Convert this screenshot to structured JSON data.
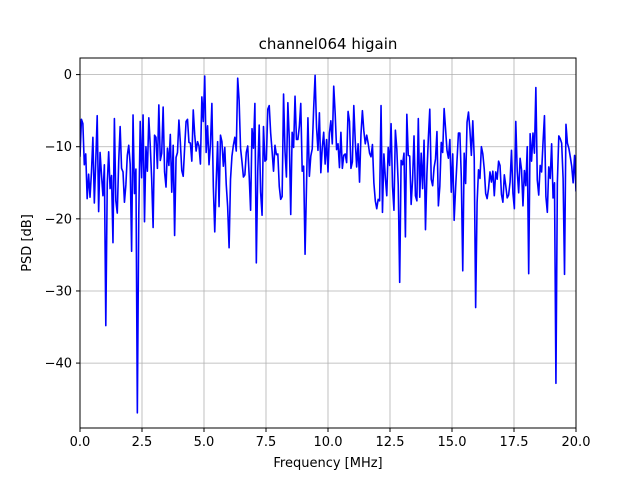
{
  "chart_data": {
    "type": "line",
    "title": "channel064 higain",
    "xlabel": "Frequency [MHz]",
    "ylabel": "PSD [dB]",
    "xlim": [
      0,
      20
    ],
    "ylim": [
      -49,
      2.3
    ],
    "x_ticks": [
      0.0,
      2.5,
      5.0,
      7.5,
      10.0,
      12.5,
      15.0,
      17.5,
      20.0
    ],
    "x_tick_labels": [
      "0.0",
      "2.5",
      "5.0",
      "7.5",
      "10.0",
      "12.5",
      "15.0",
      "17.5",
      "20.0"
    ],
    "y_ticks": [
      0,
      -10,
      -20,
      -30,
      -40
    ],
    "y_tick_labels": [
      "0",
      "−10",
      "−20",
      "−30",
      "−40"
    ],
    "grid": true,
    "line_color": "#0000ff",
    "series": [
      {
        "values_dB": [
          -11.4,
          -6.2,
          -6.8,
          -12.5,
          -11.0,
          -17.2,
          -13.8,
          -17.0,
          -13.5,
          -8.7,
          -17.8,
          -12.0,
          -5.7,
          -19.0,
          -10.8,
          -13.9,
          -16.8,
          -12.5,
          -34.8,
          -15.2,
          -10.7,
          -15.8,
          -14.0,
          -23.3,
          -6.1,
          -17.5,
          -19.2,
          -12.0,
          -7.2,
          -13.0,
          -13.5,
          -17.7,
          -15.3,
          -11.2,
          -9.8,
          -12.4,
          -24.5,
          -5.6,
          -16.5,
          -13.1,
          -46.9,
          -19.5,
          -6.5,
          -14.3,
          -5.6,
          -20.4,
          -10.0,
          -13.4,
          -6.0,
          -9.8,
          -14.5,
          -21.2,
          -8.4,
          -8.7,
          -13.0,
          -4.2,
          -11.9,
          -10.9,
          -4.5,
          -13.5,
          -15.6,
          -10.2,
          -12.6,
          -8.3,
          -16.3,
          -9.8,
          -22.3,
          -11.5,
          -10.8,
          -6.3,
          -9.4,
          -13.3,
          -14.1,
          -10.1,
          -6.5,
          -6.2,
          -9.4,
          -9.5,
          -12.0,
          -4.9,
          -8.3,
          -10.6,
          -9.3,
          -9.9,
          -12.4,
          -3.1,
          -6.5,
          -0.2,
          -10.8,
          -7.1,
          -12.5,
          -9.7,
          -4.0,
          -15.5,
          -21.8,
          -15.0,
          -9.3,
          -18.3,
          -8.4,
          -9.3,
          -12.7,
          -10.1,
          -15.2,
          -18.3,
          -24.0,
          -14.5,
          -11.3,
          -9.8,
          -8.7,
          -10.6,
          -0.5,
          -3.6,
          -10.2,
          -12.1,
          -14.2,
          -13.9,
          -10.8,
          -9.9,
          -14.0,
          -18.8,
          -7.5,
          -10.2,
          -4.0,
          -26.1,
          -13.4,
          -7.0,
          -16.3,
          -19.5,
          -7.2,
          -12.0,
          -11.8,
          -4.8,
          -4.3,
          -8.1,
          -10.6,
          -13.4,
          -9.8,
          -11.1,
          -11.0,
          -15.5,
          -17.3,
          -16.9,
          -2.7,
          -10.6,
          -14.2,
          -3.9,
          -8.9,
          -19.4,
          -8.0,
          -10.1,
          -3.0,
          -9.0,
          -9.0,
          -7.2,
          -4.0,
          -13.4,
          -12.7,
          -24.9,
          -15.5,
          -6.0,
          -14.1,
          -11.3,
          -10.3,
          -4.7,
          -0.1,
          -7.3,
          -10.5,
          -5.3,
          -13.6,
          -10.1,
          -8.0,
          -12.4,
          -9.0,
          -13.5,
          -8.1,
          -6.4,
          -9.6,
          -1.6,
          -5.4,
          -10.4,
          -9.6,
          -12.9,
          -8.0,
          -13.0,
          -11.2,
          -11.0,
          -12.2,
          -5.1,
          -6.5,
          -13.0,
          -12.1,
          -4.3,
          -9.2,
          -12.8,
          -9.6,
          -14.9,
          -8.3,
          -5.0,
          -7.8,
          -9.6,
          -8.4,
          -9.5,
          -10.9,
          -11.4,
          -9.7,
          -15.0,
          -17.5,
          -18.6,
          -17.3,
          -17.5,
          -4.3,
          -19.1,
          -11.0,
          -14.3,
          -16.8,
          -10.1,
          -12.6,
          -6.8,
          -15.5,
          -18.8,
          -7.7,
          -10.3,
          -15.3,
          -28.8,
          -11.9,
          -12.5,
          -10.9,
          -22.5,
          -5.5,
          -11.2,
          -11.3,
          -18.0,
          -14.6,
          -8.5,
          -16.8,
          -17.5,
          -6.1,
          -17.0,
          -10.9,
          -15.8,
          -9.1,
          -21.5,
          -13.8,
          -8.8,
          -4.8,
          -14.5,
          -15.4,
          -12.9,
          -11.7,
          -7.9,
          -18.2,
          -15.5,
          -9.4,
          -10.8,
          -4.7,
          -7.5,
          -10.5,
          -11.6,
          -9.0,
          -16.3,
          -11.0,
          -20.2,
          -15.8,
          -11.9,
          -8.1,
          -8.1,
          -14.3,
          -27.2,
          -10.9,
          -15.1,
          -6.6,
          -5.2,
          -7.7,
          -11.2,
          -6.4,
          -11.5,
          -32.3,
          -17.8,
          -13.2,
          -14.4,
          -10.0,
          -11.0,
          -13.1,
          -16.5,
          -17.2,
          -15.8,
          -13.5,
          -14.9,
          -13.4,
          -16.8,
          -13.5,
          -14.5,
          -12.0,
          -12.6,
          -16.6,
          -17.7,
          -13.9,
          -15.4,
          -17.1,
          -16.7,
          -14.9,
          -10.5,
          -16.4,
          -18.6,
          -6.5,
          -13.4,
          -16.4,
          -11.6,
          -13.2,
          -18.2,
          -13.3,
          -15.4,
          -10.0,
          -27.6,
          -8.2,
          -12.0,
          -8.1,
          -10.9,
          -1.8,
          -14.6,
          -16.7,
          -12.6,
          -13.5,
          -9.4,
          -5.7,
          -16.9,
          -19.1,
          -12.8,
          -14.4,
          -9.6,
          -17.1,
          -15.0,
          -42.8,
          -15.0,
          -8.5,
          -8.9,
          -9.5,
          -14.4,
          -27.7,
          -6.9,
          -9.5,
          -10.2,
          -11.4,
          -12.7,
          -15.0,
          -11.2,
          -16.2
        ]
      }
    ]
  }
}
